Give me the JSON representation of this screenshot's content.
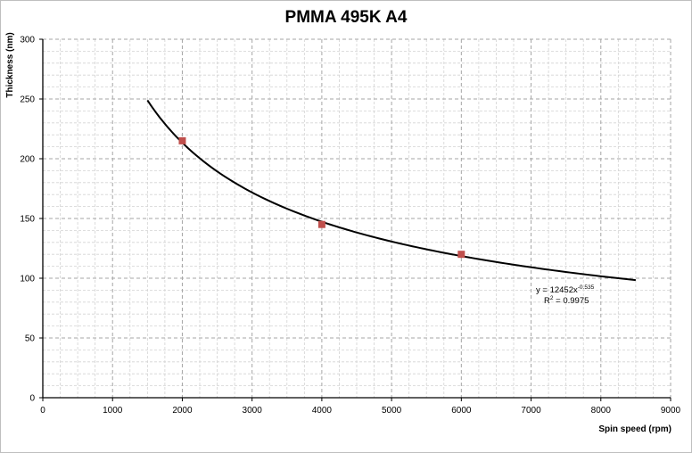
{
  "chart_data": {
    "type": "scatter",
    "title": "PMMA 495K A4",
    "xlabel": "Spin speed (rpm)",
    "ylabel": "Thickness (nm)",
    "xlim": [
      0,
      9000
    ],
    "ylim": [
      0,
      300
    ],
    "x_ticks": [
      "0",
      "1000",
      "2000",
      "3000",
      "4000",
      "5000",
      "6000",
      "7000",
      "8000",
      "9000"
    ],
    "y_ticks": [
      "0",
      "50",
      "100",
      "150",
      "200",
      "250",
      "300"
    ],
    "grid": true,
    "series": [
      {
        "marker": "square",
        "color": "#c0504d",
        "x": [
          2000,
          4000,
          6000
        ],
        "y": [
          215,
          145,
          120
        ]
      }
    ],
    "trendline": {
      "type": "power",
      "coefficient": 12452,
      "exponent": -0.535,
      "x_range": [
        1500,
        8500
      ],
      "color": "#000000",
      "equation_prefix": "y = 12452x",
      "equation_exponent": "-0.535",
      "r2_prefix": "R",
      "r2_power": "2",
      "r2_suffix": " = 0.9975"
    }
  }
}
